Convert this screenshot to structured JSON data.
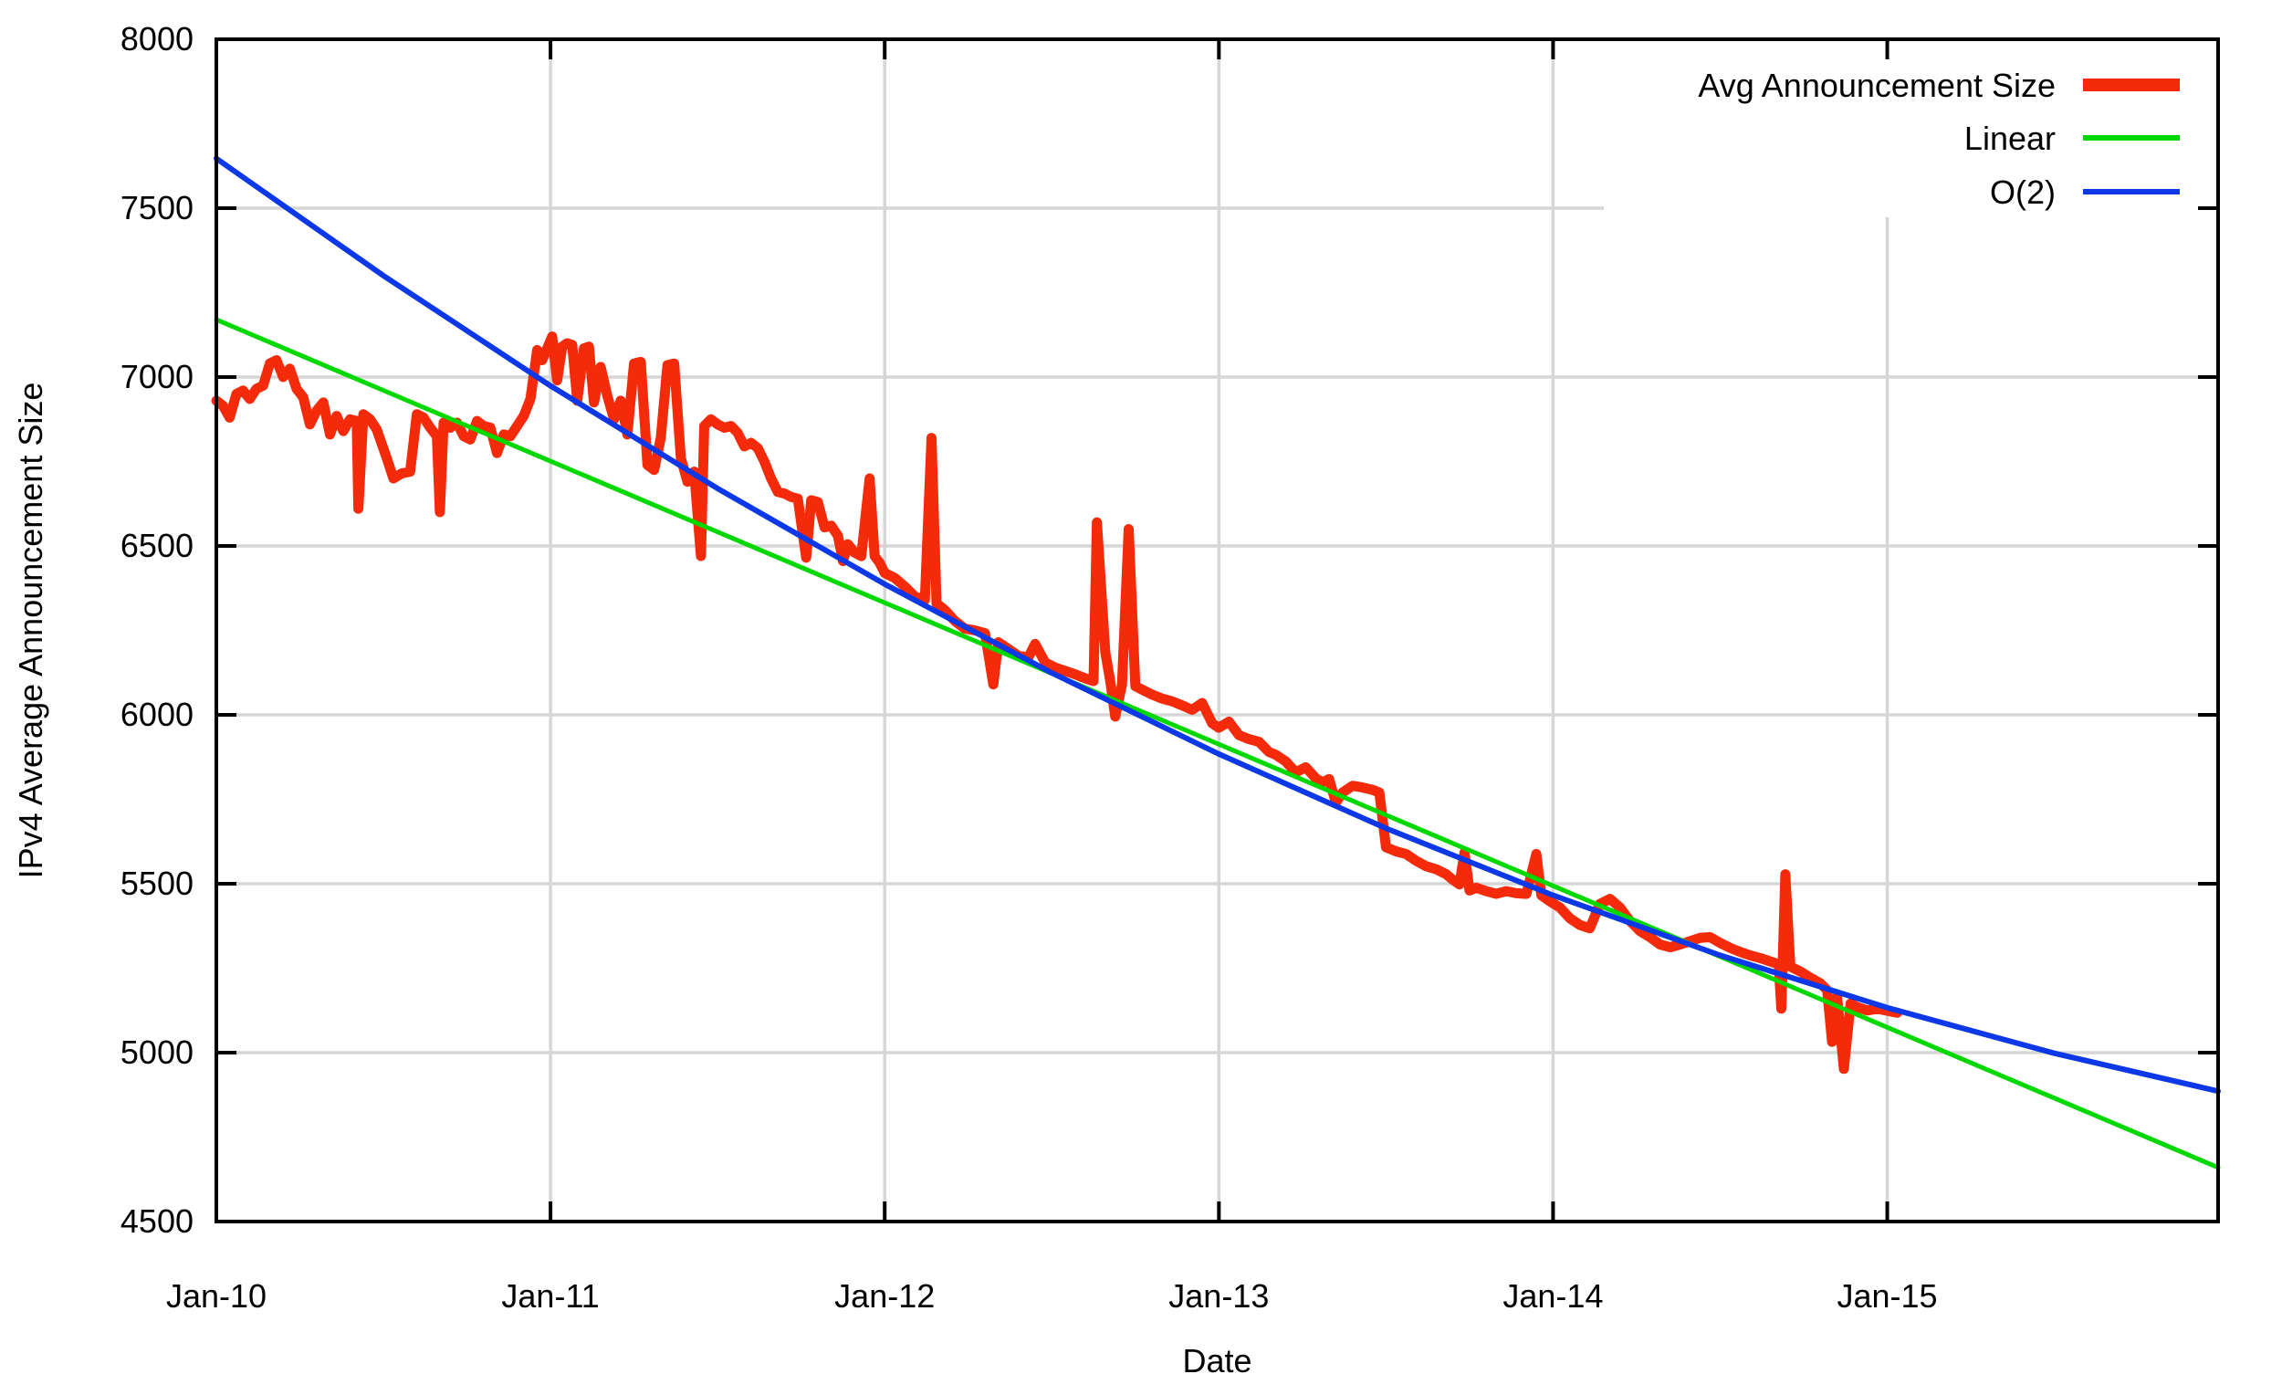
{
  "chart_data": {
    "type": "line",
    "title": "",
    "xlabel": "Date",
    "ylabel": "IPv4 Average Announcement Size",
    "x_units": "years since Jan-2010",
    "xlim": [
      0,
      5.99
    ],
    "ylim": [
      4500,
      8000
    ],
    "grid": true,
    "legend_position": "top-right",
    "background_color": "#ffffff",
    "axis_color": "#000000",
    "grid_color": "#d6d6d6",
    "x_tick_positions": [
      0,
      1,
      2,
      3,
      4,
      5
    ],
    "x_tick_labels": [
      "Jan-10",
      "Jan-11",
      "Jan-12",
      "Jan-13",
      "Jan-14",
      "Jan-15"
    ],
    "y_ticks": [
      4500,
      5000,
      5500,
      6000,
      6500,
      7000,
      7500,
      8000
    ],
    "y_tick_labels": [
      "4500",
      "5000",
      "5500",
      "6000",
      "6500",
      "7000",
      "7500",
      "8000"
    ],
    "series": [
      {
        "name": "Avg Announcement Size",
        "color": "#f42a0a",
        "line_width": 11,
        "legend_sample_width": 14,
        "points": [
          [
            0.0,
            6930
          ],
          [
            0.02,
            6915
          ],
          [
            0.04,
            6880
          ],
          [
            0.06,
            6950
          ],
          [
            0.08,
            6960
          ],
          [
            0.1,
            6935
          ],
          [
            0.12,
            6965
          ],
          [
            0.14,
            6975
          ],
          [
            0.16,
            7040
          ],
          [
            0.18,
            7050
          ],
          [
            0.2,
            7000
          ],
          [
            0.22,
            7025
          ],
          [
            0.24,
            6965
          ],
          [
            0.26,
            6940
          ],
          [
            0.28,
            6860
          ],
          [
            0.3,
            6900
          ],
          [
            0.32,
            6925
          ],
          [
            0.34,
            6830
          ],
          [
            0.36,
            6885
          ],
          [
            0.38,
            6840
          ],
          [
            0.4,
            6875
          ],
          [
            0.42,
            6870
          ],
          [
            0.425,
            6610
          ],
          [
            0.44,
            6890
          ],
          [
            0.46,
            6875
          ],
          [
            0.48,
            6845
          ],
          [
            0.51,
            6760
          ],
          [
            0.53,
            6700
          ],
          [
            0.555,
            6715
          ],
          [
            0.58,
            6720
          ],
          [
            0.6,
            6890
          ],
          [
            0.62,
            6880
          ],
          [
            0.64,
            6850
          ],
          [
            0.66,
            6825
          ],
          [
            0.669,
            6600
          ],
          [
            0.68,
            6865
          ],
          [
            0.7,
            6850
          ],
          [
            0.72,
            6865
          ],
          [
            0.74,
            6825
          ],
          [
            0.76,
            6815
          ],
          [
            0.78,
            6870
          ],
          [
            0.8,
            6855
          ],
          [
            0.82,
            6850
          ],
          [
            0.84,
            6775
          ],
          [
            0.86,
            6830
          ],
          [
            0.88,
            6825
          ],
          [
            0.9,
            6855
          ],
          [
            0.92,
            6885
          ],
          [
            0.94,
            6935
          ],
          [
            0.96,
            7080
          ],
          [
            0.975,
            7050
          ],
          [
            0.99,
            7085
          ],
          [
            1.005,
            7120
          ],
          [
            1.02,
            6990
          ],
          [
            1.035,
            7090
          ],
          [
            1.05,
            7100
          ],
          [
            1.065,
            7095
          ],
          [
            1.08,
            6930
          ],
          [
            1.1,
            7085
          ],
          [
            1.115,
            7090
          ],
          [
            1.13,
            6925
          ],
          [
            1.15,
            7030
          ],
          [
            1.17,
            6945
          ],
          [
            1.19,
            6875
          ],
          [
            1.21,
            6930
          ],
          [
            1.23,
            6830
          ],
          [
            1.25,
            7040
          ],
          [
            1.27,
            7045
          ],
          [
            1.29,
            6740
          ],
          [
            1.31,
            6725
          ],
          [
            1.33,
            6820
          ],
          [
            1.35,
            7035
          ],
          [
            1.37,
            7040
          ],
          [
            1.39,
            6760
          ],
          [
            1.41,
            6690
          ],
          [
            1.43,
            6720
          ],
          [
            1.45,
            6470
          ],
          [
            1.46,
            6855
          ],
          [
            1.48,
            6875
          ],
          [
            1.5,
            6860
          ],
          [
            1.52,
            6850
          ],
          [
            1.54,
            6855
          ],
          [
            1.56,
            6835
          ],
          [
            1.58,
            6795
          ],
          [
            1.6,
            6805
          ],
          [
            1.62,
            6790
          ],
          [
            1.64,
            6750
          ],
          [
            1.66,
            6700
          ],
          [
            1.68,
            6660
          ],
          [
            1.7,
            6655
          ],
          [
            1.72,
            6645
          ],
          [
            1.74,
            6640
          ],
          [
            1.765,
            6465
          ],
          [
            1.78,
            6635
          ],
          [
            1.8,
            6630
          ],
          [
            1.82,
            6555
          ],
          [
            1.84,
            6560
          ],
          [
            1.86,
            6530
          ],
          [
            1.875,
            6455
          ],
          [
            1.89,
            6505
          ],
          [
            1.91,
            6480
          ],
          [
            1.93,
            6470
          ],
          [
            1.955,
            6700
          ],
          [
            1.97,
            6470
          ],
          [
            1.985,
            6450
          ],
          [
            2.0,
            6420
          ],
          [
            2.03,
            6405
          ],
          [
            2.06,
            6380
          ],
          [
            2.09,
            6350
          ],
          [
            2.12,
            6340
          ],
          [
            2.14,
            6820
          ],
          [
            2.155,
            6330
          ],
          [
            2.18,
            6310
          ],
          [
            2.21,
            6278
          ],
          [
            2.24,
            6255
          ],
          [
            2.27,
            6250
          ],
          [
            2.3,
            6242
          ],
          [
            2.325,
            6090
          ],
          [
            2.34,
            6215
          ],
          [
            2.37,
            6195
          ],
          [
            2.4,
            6175
          ],
          [
            2.43,
            6170
          ],
          [
            2.45,
            6210
          ],
          [
            2.48,
            6155
          ],
          [
            2.51,
            6140
          ],
          [
            2.54,
            6130
          ],
          [
            2.57,
            6120
          ],
          [
            2.6,
            6108
          ],
          [
            2.625,
            6100
          ],
          [
            2.635,
            6570
          ],
          [
            2.66,
            6185
          ],
          [
            2.675,
            6100
          ],
          [
            2.69,
            5995
          ],
          [
            2.71,
            6090
          ],
          [
            2.73,
            6550
          ],
          [
            2.75,
            6085
          ],
          [
            2.77,
            6075
          ],
          [
            2.8,
            6060
          ],
          [
            2.83,
            6048
          ],
          [
            2.86,
            6040
          ],
          [
            2.89,
            6028
          ],
          [
            2.92,
            6015
          ],
          [
            2.95,
            6035
          ],
          [
            2.98,
            5975
          ],
          [
            3.0,
            5962
          ],
          [
            3.03,
            5980
          ],
          [
            3.06,
            5940
          ],
          [
            3.09,
            5928
          ],
          [
            3.12,
            5920
          ],
          [
            3.15,
            5890
          ],
          [
            3.17,
            5882
          ],
          [
            3.2,
            5862
          ],
          [
            3.23,
            5830
          ],
          [
            3.26,
            5845
          ],
          [
            3.29,
            5812
          ],
          [
            3.31,
            5800
          ],
          [
            3.33,
            5810
          ],
          [
            3.35,
            5740
          ],
          [
            3.37,
            5770
          ],
          [
            3.4,
            5790
          ],
          [
            3.43,
            5785
          ],
          [
            3.46,
            5778
          ],
          [
            3.48,
            5770
          ],
          [
            3.5,
            5608
          ],
          [
            3.53,
            5596
          ],
          [
            3.56,
            5588
          ],
          [
            3.59,
            5568
          ],
          [
            3.62,
            5552
          ],
          [
            3.65,
            5543
          ],
          [
            3.68,
            5528
          ],
          [
            3.7,
            5512
          ],
          [
            3.72,
            5498
          ],
          [
            3.735,
            5592
          ],
          [
            3.75,
            5480
          ],
          [
            3.77,
            5488
          ],
          [
            3.8,
            5478
          ],
          [
            3.83,
            5470
          ],
          [
            3.86,
            5478
          ],
          [
            3.89,
            5472
          ],
          [
            3.92,
            5470
          ],
          [
            3.95,
            5588
          ],
          [
            3.965,
            5466
          ],
          [
            3.99,
            5448
          ],
          [
            4.02,
            5430
          ],
          [
            4.05,
            5398
          ],
          [
            4.08,
            5378
          ],
          [
            4.11,
            5368
          ],
          [
            4.14,
            5440
          ],
          [
            4.17,
            5455
          ],
          [
            4.2,
            5430
          ],
          [
            4.23,
            5390
          ],
          [
            4.26,
            5360
          ],
          [
            4.29,
            5342
          ],
          [
            4.32,
            5320
          ],
          [
            4.35,
            5312
          ],
          [
            4.38,
            5320
          ],
          [
            4.41,
            5330
          ],
          [
            4.44,
            5340
          ],
          [
            4.47,
            5342
          ],
          [
            4.5,
            5325
          ],
          [
            4.53,
            5310
          ],
          [
            4.56,
            5298
          ],
          [
            4.59,
            5288
          ],
          [
            4.62,
            5280
          ],
          [
            4.65,
            5270
          ],
          [
            4.675,
            5262
          ],
          [
            4.683,
            5130
          ],
          [
            4.695,
            5528
          ],
          [
            4.71,
            5255
          ],
          [
            4.74,
            5240
          ],
          [
            4.77,
            5222
          ],
          [
            4.8,
            5205
          ],
          [
            4.82,
            5185
          ],
          [
            4.835,
            5032
          ],
          [
            4.85,
            5165
          ],
          [
            4.87,
            4952
          ],
          [
            4.89,
            5145
          ],
          [
            4.91,
            5135
          ],
          [
            4.94,
            5125
          ],
          [
            4.97,
            5130
          ],
          [
            5.0,
            5124
          ],
          [
            5.03,
            5118
          ]
        ]
      },
      {
        "name": "Linear",
        "color": "#00d800",
        "line_width": 5,
        "legend_sample_width": 6,
        "points": [
          [
            0,
            7170
          ],
          [
            5.99,
            4660
          ]
        ]
      },
      {
        "name": "O(2)",
        "color": "#0c38e8",
        "line_width": 6,
        "legend_sample_width": 6,
        "points": [
          [
            0,
            7647
          ],
          [
            0.5,
            7300
          ],
          [
            1.0,
            6974
          ],
          [
            1.5,
            6670
          ],
          [
            2.0,
            6387
          ],
          [
            2.5,
            6124
          ],
          [
            3.0,
            5884
          ],
          [
            3.5,
            5664
          ],
          [
            4.0,
            5466
          ],
          [
            4.5,
            5288
          ],
          [
            5.0,
            5133
          ],
          [
            5.5,
            4998
          ],
          [
            5.99,
            4886
          ]
        ]
      }
    ]
  }
}
